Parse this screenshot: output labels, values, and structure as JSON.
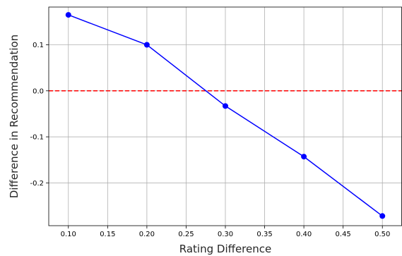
{
  "chart_data": {
    "type": "line",
    "title": "",
    "xlabel": "Rating Difference",
    "ylabel": "Difference in Recommendation",
    "x": [
      0.1,
      0.2,
      0.3,
      0.4,
      0.5
    ],
    "series": [
      {
        "values": [
          0.165,
          0.1,
          -0.033,
          -0.143,
          -0.272
        ],
        "color": "#0000ff",
        "marker": "circle"
      }
    ],
    "reference_line": {
      "y": 0.0,
      "color": "#ff0000",
      "style": "dashed"
    },
    "xlim": [
      0.075,
      0.525
    ],
    "ylim": [
      -0.293,
      0.182
    ],
    "xticks": [
      0.1,
      0.15,
      0.2,
      0.25,
      0.3,
      0.35,
      0.4,
      0.45,
      0.5
    ],
    "xtick_labels": [
      "0.10",
      "0.15",
      "0.20",
      "0.25",
      "0.30",
      "0.35",
      "0.40",
      "0.45",
      "0.50"
    ],
    "yticks": [
      -0.2,
      -0.1,
      0.0,
      0.1
    ],
    "ytick_labels": [
      "-0.2",
      "-0.1",
      "0.0",
      "0.1"
    ],
    "grid": true
  }
}
